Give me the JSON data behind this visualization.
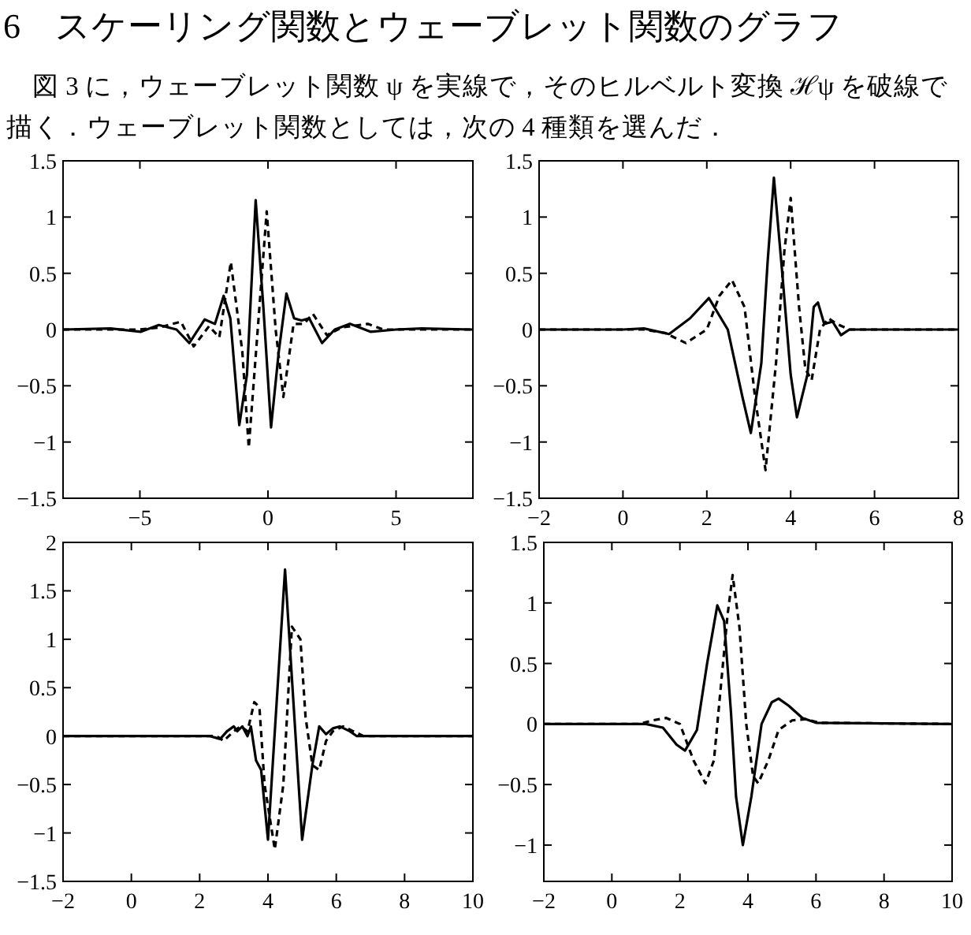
{
  "chart_data": [
    {
      "type": "other",
      "title": "6　スケーリング関数とウェーブレット関数のグラフ",
      "annotations": [
        "図 3 に，ウェーブレット関数 ψ を実線で，そのヒルベルト変換 ℋψ を破線で描く．ウェーブレット関数としては，次の 4 種類を選んだ．"
      ]
    },
    {
      "type": "line",
      "xlim": [
        -8,
        8
      ],
      "xticks": [
        -5,
        0,
        5
      ],
      "ylim": [
        -1.5,
        1.5
      ],
      "yticks": [
        -1.5,
        -1,
        -0.5,
        0,
        0.5,
        1,
        1.5
      ],
      "series": [
        {
          "color": "#000000",
          "line_style": "solid",
          "x": [
            -8,
            -6.15,
            -4.96,
            -4.26,
            -3.57,
            -3.07,
            -2.47,
            -2.07,
            -1.73,
            -1.47,
            -1.12,
            -0.82,
            -0.48,
            -0.18,
            0.12,
            0.42,
            0.72,
            1.02,
            1.31,
            1.61,
            2.11,
            2.61,
            3.2,
            4.0,
            5.0,
            6.0,
            8
          ],
          "values": [
            0,
            0.01,
            -0.02,
            0.04,
            0,
            -0.12,
            0.09,
            0.05,
            0.3,
            0.1,
            -0.85,
            -0.4,
            1.15,
            0.2,
            -0.87,
            -0.2,
            0.32,
            0.1,
            0.08,
            0.1,
            -0.12,
            0,
            0.05,
            -0.02,
            0,
            0.01,
            0
          ]
        },
        {
          "color": "#000000",
          "line_style": "dashed",
          "x": [
            -8,
            -5,
            -4.2,
            -3.4,
            -2.9,
            -2.3,
            -1.9,
            -1.45,
            -1.0,
            -0.75,
            -0.4,
            -0.05,
            0.3,
            0.6,
            1.0,
            1.4,
            1.75,
            2.3,
            2.9,
            3.9,
            4.5,
            8
          ],
          "values": [
            0,
            0,
            0.02,
            0.07,
            -0.15,
            0.03,
            -0.07,
            0.6,
            -0.2,
            -1.05,
            0,
            1.05,
            0,
            -0.6,
            0.05,
            0.05,
            0.14,
            -0.05,
            0.02,
            0.05,
            0,
            0
          ]
        }
      ]
    },
    {
      "type": "line",
      "xlim": [
        -2,
        8
      ],
      "xticks": [
        -2,
        0,
        2,
        4,
        6,
        8
      ],
      "ylim": [
        -1.5,
        1.5
      ],
      "yticks": [
        -1.5,
        -1,
        -0.5,
        0,
        0.5,
        1,
        1.5
      ],
      "series": [
        {
          "color": "#000000",
          "line_style": "solid",
          "x": [
            -2,
            0,
            0.5,
            1.1,
            1.6,
            2.05,
            2.5,
            2.85,
            3.05,
            3.3,
            3.45,
            3.6,
            3.8,
            4.0,
            4.15,
            4.4,
            4.55,
            4.65,
            4.8,
            5.0,
            5.2,
            5.4,
            8
          ],
          "values": [
            0,
            0,
            0.01,
            -0.04,
            0.1,
            0.28,
            0,
            -0.6,
            -0.92,
            -0.3,
            0.6,
            1.35,
            0.5,
            -0.4,
            -0.78,
            -0.4,
            0.2,
            0.24,
            0.05,
            0.07,
            -0.05,
            0,
            0
          ]
        },
        {
          "color": "#000000",
          "line_style": "dashed",
          "x": [
            -2,
            0.5,
            1.0,
            1.5,
            2.0,
            2.3,
            2.6,
            2.9,
            3.15,
            3.4,
            3.65,
            3.85,
            4.0,
            4.2,
            4.35,
            4.5,
            4.7,
            4.9,
            5.1,
            5.4,
            8
          ],
          "values": [
            0,
            0,
            -0.03,
            -0.12,
            0,
            0.3,
            0.44,
            0.2,
            -0.6,
            -1.25,
            -0.3,
            0.7,
            1.17,
            0.2,
            -0.35,
            -0.45,
            0,
            0.1,
            0.05,
            0,
            0
          ]
        }
      ]
    },
    {
      "type": "line",
      "xlim": [
        -2,
        10
      ],
      "xticks": [
        -2,
        0,
        2,
        4,
        6,
        8,
        10
      ],
      "ylim": [
        -1.5,
        2
      ],
      "yticks": [
        -1.5,
        -1,
        -0.5,
        0,
        0.5,
        1,
        1.5,
        2
      ],
      "series": [
        {
          "color": "#000000",
          "line_style": "solid",
          "x": [
            -2,
            2.3,
            2.6,
            2.8,
            3.0,
            3.1,
            3.25,
            3.4,
            3.5,
            3.65,
            3.8,
            4.0,
            4.5,
            5.0,
            5.3,
            5.5,
            5.7,
            5.9,
            6.1,
            6.4,
            6.6,
            10
          ],
          "values": [
            0,
            0,
            -0.03,
            0.05,
            0.1,
            0.05,
            0.1,
            0,
            0.1,
            -0.25,
            -0.35,
            -1.07,
            1.72,
            -1.07,
            -0.3,
            0.1,
            0.02,
            0.08,
            0.1,
            0.05,
            0,
            0
          ]
        },
        {
          "color": "#000000",
          "line_style": "dashed",
          "x": [
            -2,
            2.5,
            2.7,
            3.0,
            3.2,
            3.4,
            3.6,
            3.75,
            3.9,
            4.2,
            4.45,
            4.7,
            4.95,
            5.1,
            5.3,
            5.5,
            5.7,
            5.9,
            6.2,
            6.5,
            6.8,
            10
          ],
          "values": [
            0,
            0,
            -0.05,
            0.05,
            0.1,
            0.05,
            0.35,
            0.3,
            -0.5,
            -1.17,
            -0.5,
            1.13,
            1.0,
            0.2,
            -0.3,
            -0.35,
            -0.05,
            0.05,
            0.1,
            0.05,
            0,
            0
          ]
        }
      ]
    },
    {
      "type": "line",
      "xlim": [
        -2,
        10
      ],
      "xticks": [
        -2,
        0,
        2,
        4,
        6,
        8,
        10
      ],
      "ylim": [
        -1.3,
        1.5
      ],
      "yticks": [
        -1,
        -0.5,
        0,
        0.5,
        1,
        1.5
      ],
      "series": [
        {
          "color": "#000000",
          "line_style": "solid",
          "x": [
            -2,
            1.0,
            1.5,
            1.9,
            2.15,
            2.5,
            2.8,
            3.1,
            3.3,
            3.5,
            3.65,
            3.85,
            4.1,
            4.4,
            4.7,
            4.9,
            5.2,
            5.6,
            6.0,
            10
          ],
          "values": [
            0,
            0,
            -0.03,
            -0.17,
            -0.22,
            -0.05,
            0.5,
            0.98,
            0.85,
            0.1,
            -0.6,
            -1.0,
            -0.6,
            0,
            0.18,
            0.21,
            0.15,
            0.05,
            0.01,
            0
          ]
        },
        {
          "color": "#000000",
          "line_style": "dashed",
          "x": [
            -2,
            0.8,
            1.2,
            1.6,
            2.0,
            2.4,
            2.75,
            3.0,
            3.2,
            3.4,
            3.55,
            3.75,
            3.95,
            4.15,
            4.3,
            4.6,
            4.9,
            5.3,
            5.7,
            6.1,
            10
          ],
          "values": [
            0,
            0,
            0.03,
            0.05,
            0,
            -0.3,
            -0.49,
            -0.3,
            0.3,
            0.9,
            1.23,
            0.8,
            0,
            -0.43,
            -0.49,
            -0.3,
            -0.05,
            0.03,
            0.04,
            0.01,
            0
          ]
        }
      ]
    }
  ]
}
